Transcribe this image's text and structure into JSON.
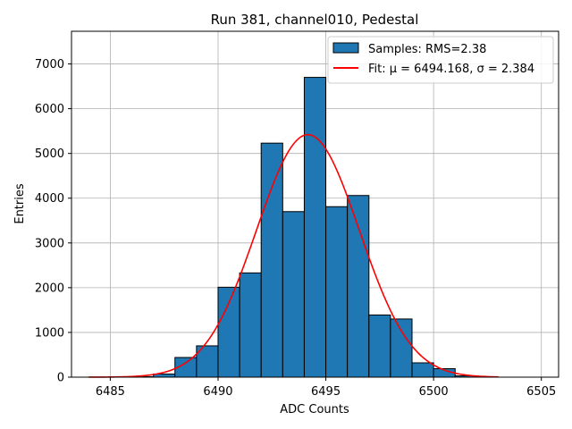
{
  "chart_data": {
    "type": "bar",
    "title": "Run 381, channel010, Pedestal",
    "xlabel": "ADC Counts",
    "ylabel": "Entries",
    "xlim": [
      6483.2,
      6505.8
    ],
    "ylim": [
      0,
      7730
    ],
    "xticks": [
      6485,
      6490,
      6495,
      6500,
      6505
    ],
    "yticks": [
      0,
      1000,
      2000,
      3000,
      4000,
      5000,
      6000,
      7000
    ],
    "grid": true,
    "legend_position": "top-right",
    "histogram": {
      "name": "Samples: RMS=2.38",
      "color": "#1f77b4",
      "edgecolor": "#000000",
      "bins": [
        {
          "x0": 6484,
          "x1": 6485,
          "count": 0
        },
        {
          "x0": 6485,
          "x1": 6486,
          "count": 0
        },
        {
          "x0": 6486,
          "x1": 6487,
          "count": 10
        },
        {
          "x0": 6487,
          "x1": 6488,
          "count": 70
        },
        {
          "x0": 6488,
          "x1": 6489,
          "count": 440
        },
        {
          "x0": 6489,
          "x1": 6490,
          "count": 700
        },
        {
          "x0": 6490,
          "x1": 6491,
          "count": 2010
        },
        {
          "x0": 6491,
          "x1": 6492,
          "count": 2330
        },
        {
          "x0": 6492,
          "x1": 6493,
          "count": 5230
        },
        {
          "x0": 6493,
          "x1": 6494,
          "count": 3700
        },
        {
          "x0": 6494,
          "x1": 6495,
          "count": 6700
        },
        {
          "x0": 6495,
          "x1": 6496,
          "count": 3810
        },
        {
          "x0": 6496,
          "x1": 6497,
          "count": 4060
        },
        {
          "x0": 6497,
          "x1": 6498,
          "count": 1390
        },
        {
          "x0": 6498,
          "x1": 6499,
          "count": 1300
        },
        {
          "x0": 6499,
          "x1": 6500,
          "count": 320
        },
        {
          "x0": 6500,
          "x1": 6501,
          "count": 190
        },
        {
          "x0": 6501,
          "x1": 6502,
          "count": 30
        },
        {
          "x0": 6502,
          "x1": 6503,
          "count": 5
        }
      ]
    },
    "fit": {
      "name": "Fit: μ = 6494.168, σ = 2.384",
      "color": "#ff0000",
      "mu": 6494.168,
      "sigma": 2.384,
      "amplitude": 5420,
      "x_range": [
        6484,
        6503
      ]
    }
  }
}
